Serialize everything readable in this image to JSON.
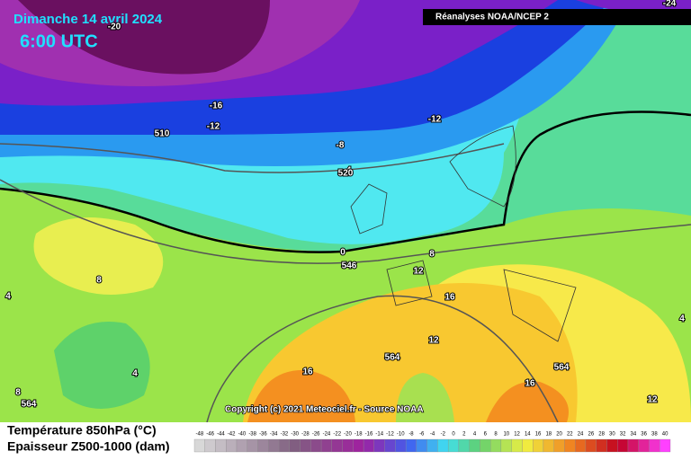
{
  "header": {
    "date": "Dimanche 14 avril 2024",
    "time": "6:00 UTC",
    "source": "Réanalyses NOAA/NCEP 2"
  },
  "contour_labels": [
    -24,
    -20,
    -16,
    -12,
    -12,
    -8,
    -4,
    0,
    4,
    8,
    8,
    12,
    16,
    12,
    16,
    16,
    4,
    4,
    8,
    12,
    510,
    520,
    546,
    564,
    564,
    564
  ],
  "copyright": "Copyright (c) 2021 Meteociel.fr - Source NOAA",
  "legend": {
    "temperature_label": "Température 850hPa (°C)",
    "thickness_label": "Epaisseur Z500-1000 (dam)",
    "scale": [
      -48,
      -46,
      -44,
      -42,
      -40,
      -38,
      -36,
      -34,
      -32,
      -30,
      -28,
      -26,
      -24,
      -22,
      -20,
      -18,
      -16,
      -14,
      -12,
      -10,
      -8,
      -6,
      -4,
      -2,
      0,
      2,
      4,
      6,
      8,
      10,
      12,
      14,
      16,
      18,
      20,
      22,
      24,
      26,
      28,
      30,
      32,
      34,
      36,
      38,
      40
    ]
  }
}
